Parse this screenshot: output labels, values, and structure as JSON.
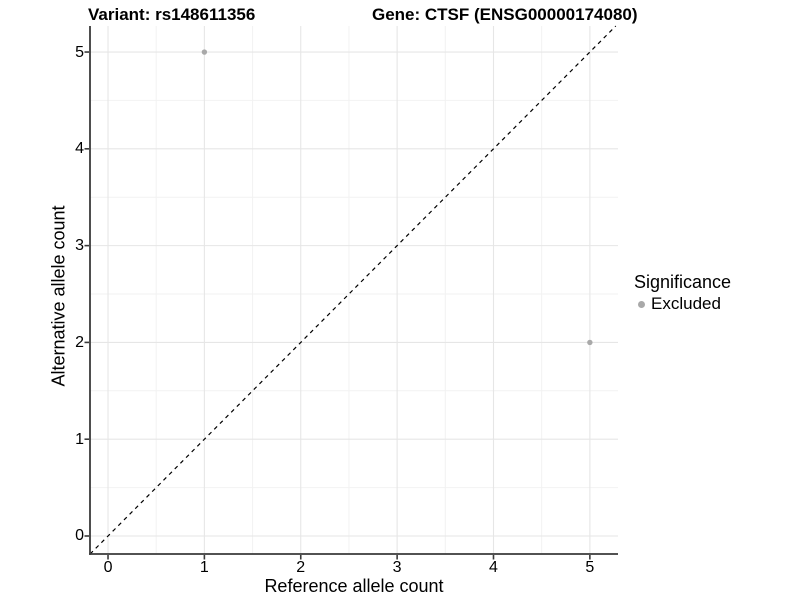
{
  "chart_data": {
    "type": "scatter",
    "title_left": "Variant: rs148611356",
    "title_right": "Gene: CTSF (ENSG00000174080)",
    "xlabel": "Reference allele count",
    "ylabel": "Alternative allele count",
    "x_ticks": [
      0,
      1,
      2,
      3,
      4,
      5
    ],
    "y_ticks": [
      0,
      1,
      2,
      3,
      4,
      5
    ],
    "x_minor": [
      0.5,
      1.5,
      2.5,
      3.5,
      4.5
    ],
    "y_minor": [
      0.5,
      1.5,
      2.5,
      3.5,
      4.5
    ],
    "xlim": [
      -0.187,
      5.292
    ],
    "ylim": [
      -0.186,
      5.269
    ],
    "grid": true,
    "identity_line": {
      "slope": 1,
      "intercept": 0,
      "style": "dashed",
      "color": "#000000"
    },
    "series": [
      {
        "name": "Excluded",
        "color": "#a9a9a9",
        "points": [
          {
            "x": 1,
            "y": 5
          },
          {
            "x": 5,
            "y": 2
          }
        ]
      }
    ],
    "legend": {
      "title": "Significance",
      "position": "right",
      "entries": [
        {
          "label": "Excluded",
          "color": "#a9a9a9"
        }
      ]
    },
    "colors": {
      "background": "#ffffff",
      "grid_major": "#e6e6e6",
      "grid_minor": "#f2f2f2",
      "axis": "#3a3a3a",
      "point": "#a9a9a9",
      "text": "#000000"
    }
  }
}
